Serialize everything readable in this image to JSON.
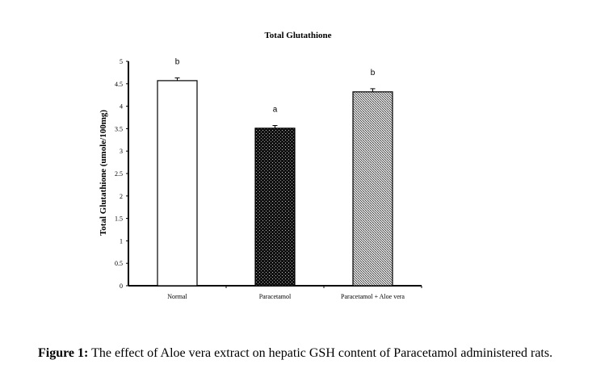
{
  "chart_data": {
    "type": "bar",
    "title": "Total Glutathione",
    "xlabel": "",
    "ylabel": "Total Glutathione (umole/100mg)",
    "ylim": [
      0,
      5
    ],
    "yticks": [
      "0",
      "0.5",
      "1",
      "1.5",
      "2",
      "2.5",
      "3",
      "3.5",
      "4",
      "4.5",
      "5"
    ],
    "categories": [
      "Normal",
      "Paracetamol",
      "Paracetamol + Aloe vera"
    ],
    "values": [
      4.57,
      3.51,
      4.32
    ],
    "errors": [
      0.06,
      0.06,
      0.07
    ],
    "annotations": [
      "b",
      "a",
      "b"
    ],
    "fills": [
      "white",
      "dark-dotted",
      "light-hatched"
    ],
    "grid": false,
    "legend": "none"
  },
  "caption": {
    "label": "Figure 1:",
    "text": " The effect of Aloe vera extract on hepatic GSH content of Paracetamol administered rats."
  }
}
